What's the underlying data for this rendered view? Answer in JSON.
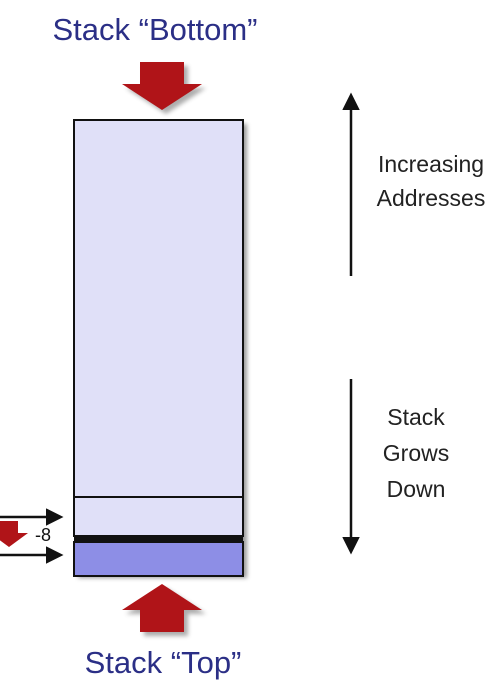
{
  "labels": {
    "stack_bottom": "Stack “Bottom”",
    "stack_top": "Stack “Top”",
    "increasing_line1": "Increasing",
    "increasing_line2": "Addresses",
    "grows_line1": "Stack",
    "grows_line2": "Grows",
    "grows_line3": "Down",
    "offset": "-8"
  },
  "colors": {
    "label_blue": "#2b2f86",
    "arrow_red": "#b01418",
    "stack_fill": "#e0e0f8",
    "top_fill": "#8d8ee6",
    "outline": "#111111",
    "shadow": "#666666"
  },
  "icons": {
    "bottom_arrow": "down-arrow-icon",
    "top_arrow": "up-arrow-icon",
    "address_arrow": "up-arrow-icon",
    "growth_arrow": "down-arrow-icon"
  }
}
